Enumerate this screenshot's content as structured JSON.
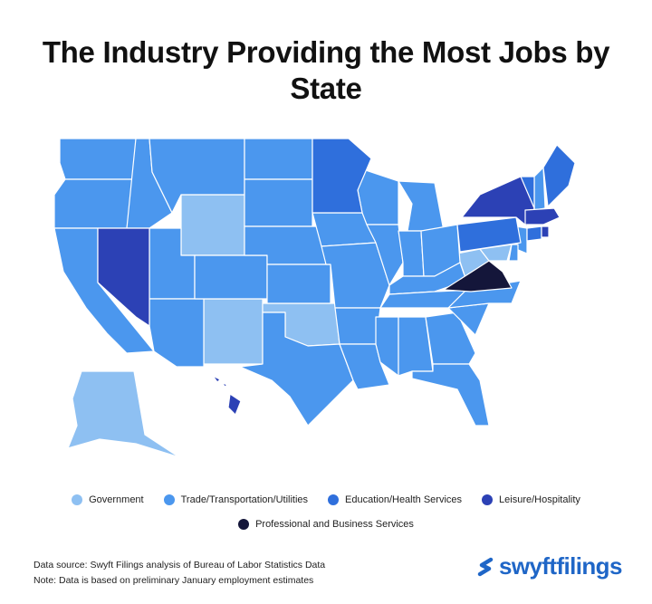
{
  "title": "The Industry Providing the Most Jobs by State",
  "legend": {
    "government": {
      "label": "Government",
      "color": "#8ec0f2"
    },
    "trade": {
      "label": "Trade/Transportation/Utilities",
      "color": "#4b97ee"
    },
    "education": {
      "label": "Education/Health Services",
      "color": "#2f6fdc"
    },
    "leisure": {
      "label": "Leisure/Hospitality",
      "color": "#2c41b5"
    },
    "professional": {
      "label": "Professional and Business Services",
      "color": "#14163a"
    }
  },
  "states_by_industry": {
    "government": [
      "Alaska",
      "Wyoming",
      "New Mexico",
      "Oklahoma",
      "West Virginia",
      "Maryland"
    ],
    "trade": [
      "Washington",
      "Oregon",
      "California",
      "Idaho",
      "Montana",
      "Utah",
      "Arizona",
      "Colorado",
      "North Dakota",
      "South Dakota",
      "Nebraska",
      "Kansas",
      "Texas",
      "Iowa",
      "Missouri",
      "Arkansas",
      "Louisiana",
      "Wisconsin",
      "Illinois",
      "Michigan",
      "Indiana",
      "Ohio",
      "Kentucky",
      "Tennessee",
      "Mississippi",
      "Alabama",
      "Georgia",
      "Florida",
      "South Carolina",
      "North Carolina",
      "New Jersey",
      "Delaware",
      "New Hampshire"
    ],
    "education": [
      "Minnesota",
      "Pennsylvania",
      "Maine",
      "Vermont",
      "Connecticut"
    ],
    "leisure": [
      "Nevada",
      "Hawaii",
      "New York",
      "Massachusetts",
      "Rhode Island"
    ],
    "professional": [
      "Virginia"
    ]
  },
  "notes": {
    "source": "Data source: Swyft Filings analysis of Bureau of Labor Statistics Data",
    "note": "Note: Data is based on preliminary January employment estimates"
  },
  "logo": {
    "text": "swyftfilings",
    "icon": "swyft-s-icon"
  }
}
